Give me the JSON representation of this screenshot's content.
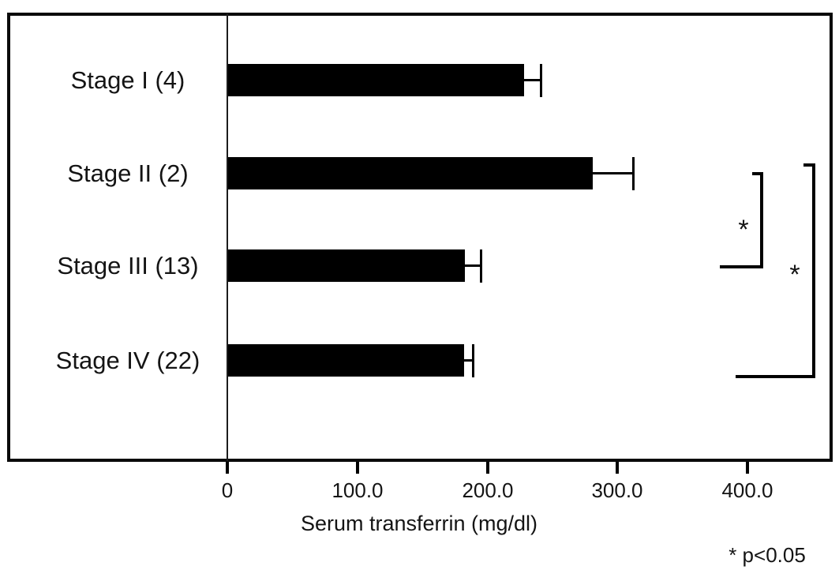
{
  "chart_data": {
    "type": "bar",
    "orientation": "horizontal",
    "title": "",
    "xlabel": "Serum transferrin (mg/dl)",
    "ylabel": "",
    "categories": [
      "Stage I (4)",
      "Stage II (2)",
      "Stage III (13)",
      "Stage IV (22)"
    ],
    "values": [
      228,
      281,
      183,
      182
    ],
    "errors_plus": [
      13,
      31,
      12,
      7
    ],
    "x_ticks": [
      0,
      100,
      200,
      300,
      400
    ],
    "x_tick_labels": [
      "0",
      "100.0",
      "200.0",
      "300.0",
      "400.0"
    ],
    "xlim": [
      0,
      466
    ],
    "bar_color": "#000000",
    "background_color": "#ffffff",
    "grid": false,
    "legend": false,
    "significance": {
      "footnote": "* p<0.05",
      "comparisons": [
        {
          "label": "*",
          "from": "Stage II (2)",
          "to": "Stage III (13)"
        },
        {
          "label": "*",
          "from": "Stage II (2)",
          "to": "Stage IV (22)"
        }
      ]
    }
  }
}
